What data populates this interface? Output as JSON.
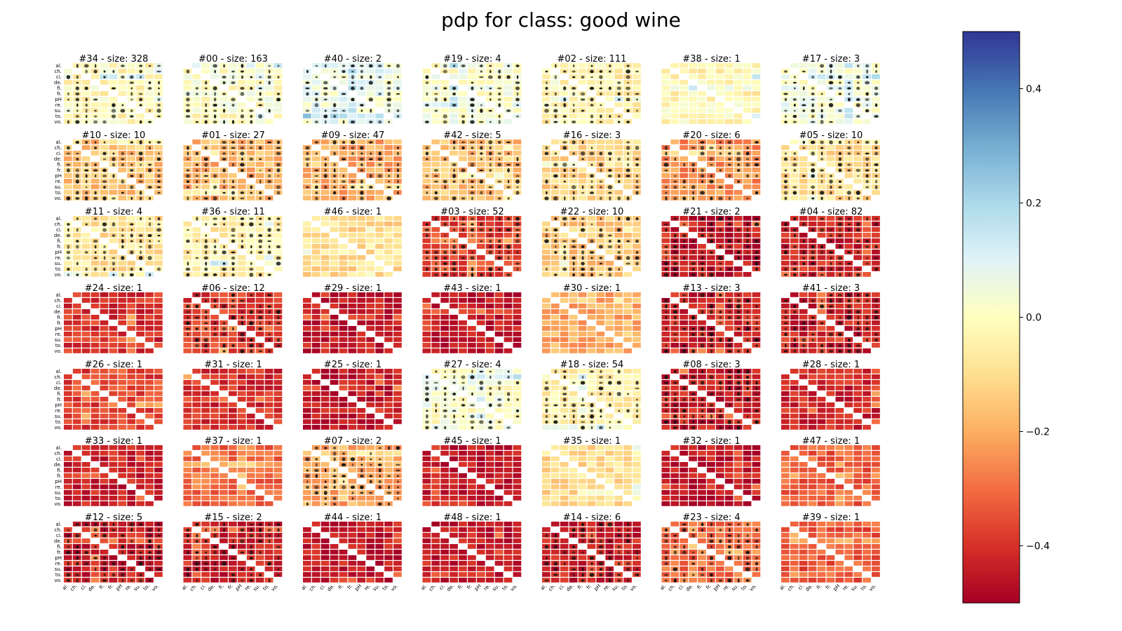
{
  "title": "pdp for class: good wine",
  "chart_data": {
    "type": "heatmap",
    "title": "pdp for class: good wine",
    "features": [
      "al.",
      "ch.",
      "ci.",
      "de.",
      "fi.",
      "fr.",
      "pH",
      "re.",
      "su.",
      "to.",
      "vo."
    ],
    "colormap": "RdYlBu",
    "colorbar": {
      "vmin": -0.5,
      "vmax": 0.5,
      "ticks": [
        0.4,
        0.2,
        0.0,
        -0.2,
        -0.4
      ],
      "tick_labels": [
        "0.4",
        "0.2",
        "0.0",
        "−0.2",
        "−0.4"
      ]
    },
    "grid_rows": 7,
    "grid_cols": 7,
    "panels": [
      {
        "label": "#34 - size: 328",
        "level": -0.02,
        "dots": true
      },
      {
        "label": "#00 - size: 163",
        "level": 0.0,
        "dots": true
      },
      {
        "label": "#40 - size: 2",
        "level": 0.06,
        "dots": true
      },
      {
        "label": "#19 - size: 4",
        "level": 0.02,
        "dots": true
      },
      {
        "label": "#02 - size: 111",
        "level": -0.04,
        "dots": true
      },
      {
        "label": "#38 - size: 1",
        "level": -0.03,
        "dots": false
      },
      {
        "label": "#17 - size: 3",
        "level": 0.03,
        "dots": true
      },
      {
        "label": "#10 - size: 10",
        "level": -0.15,
        "dots": true
      },
      {
        "label": "#01 - size: 27",
        "level": -0.18,
        "dots": true
      },
      {
        "label": "#09 - size: 47",
        "level": -0.2,
        "dots": true
      },
      {
        "label": "#42 - size: 5",
        "level": -0.16,
        "dots": true
      },
      {
        "label": "#16 - size: 3",
        "level": -0.12,
        "dots": true
      },
      {
        "label": "#20 - size: 6",
        "level": -0.24,
        "dots": true
      },
      {
        "label": "#05 - size: 10",
        "level": -0.1,
        "dots": true
      },
      {
        "label": "#11 - size: 4",
        "level": -0.08,
        "dots": true
      },
      {
        "label": "#36 - size: 11",
        "level": -0.05,
        "dots": true
      },
      {
        "label": "#46 - size: 1",
        "level": -0.1,
        "dots": false
      },
      {
        "label": "#03 - size: 52",
        "level": -0.36,
        "dots": true
      },
      {
        "label": "#22 - size: 10",
        "level": -0.15,
        "dots": true
      },
      {
        "label": "#21 - size: 2",
        "level": -0.45,
        "dots": true
      },
      {
        "label": "#04 - size: 82",
        "level": -0.42,
        "dots": true
      },
      {
        "label": "#24 - size: 1",
        "level": -0.4,
        "dots": false
      },
      {
        "label": "#06 - size: 12",
        "level": -0.38,
        "dots": true
      },
      {
        "label": "#29 - size: 1",
        "level": -0.45,
        "dots": false
      },
      {
        "label": "#43 - size: 1",
        "level": -0.45,
        "dots": false
      },
      {
        "label": "#30 - size: 1",
        "level": -0.2,
        "dots": false
      },
      {
        "label": "#13 - size: 3",
        "level": -0.43,
        "dots": true
      },
      {
        "label": "#41 - size: 3",
        "level": -0.43,
        "dots": true
      },
      {
        "label": "#26 - size: 1",
        "level": -0.36,
        "dots": false
      },
      {
        "label": "#31 - size: 1",
        "level": -0.4,
        "dots": false
      },
      {
        "label": "#25 - size: 1",
        "level": -0.45,
        "dots": false
      },
      {
        "label": "#27 - size: 4",
        "level": 0.02,
        "dots": true
      },
      {
        "label": "#18 - size: 54",
        "level": -0.05,
        "dots": true
      },
      {
        "label": "#08 - size: 3",
        "level": -0.43,
        "dots": true
      },
      {
        "label": "#28 - size: 1",
        "level": -0.42,
        "dots": false
      },
      {
        "label": "#33 - size: 1",
        "level": -0.43,
        "dots": false
      },
      {
        "label": "#37 - size: 1",
        "level": -0.3,
        "dots": false
      },
      {
        "label": "#07 - size: 2",
        "level": -0.2,
        "dots": true
      },
      {
        "label": "#45 - size: 1",
        "level": -0.45,
        "dots": false
      },
      {
        "label": "#35 - size: 1",
        "level": -0.1,
        "dots": false
      },
      {
        "label": "#32 - size: 1",
        "level": -0.45,
        "dots": false
      },
      {
        "label": "#47 - size: 1",
        "level": -0.32,
        "dots": false
      },
      {
        "label": "#12 - size: 5",
        "level": -0.43,
        "dots": true
      },
      {
        "label": "#15 - size: 2",
        "level": -0.42,
        "dots": true
      },
      {
        "label": "#44 - size: 1",
        "level": -0.45,
        "dots": false
      },
      {
        "label": "#48 - size: 1",
        "level": -0.44,
        "dots": false
      },
      {
        "label": "#14 - size: 6",
        "level": -0.43,
        "dots": true
      },
      {
        "label": "#23 - size: 4",
        "level": -0.3,
        "dots": true
      },
      {
        "label": "#39 - size: 1",
        "level": -0.33,
        "dots": false
      }
    ]
  }
}
